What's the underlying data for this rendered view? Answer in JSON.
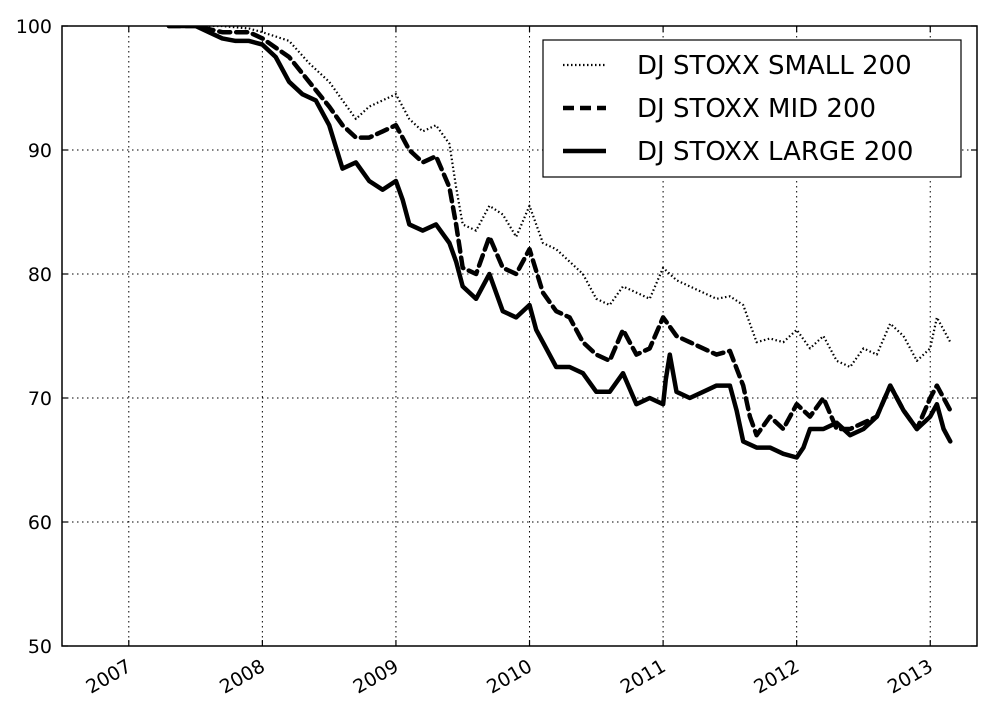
{
  "chart_data": {
    "type": "line",
    "title": "",
    "xlabel": "",
    "ylabel": "",
    "xlim": [
      2006.5,
      2013.35
    ],
    "ylim": [
      50,
      100
    ],
    "x_ticks": [
      2007,
      2008,
      2009,
      2010,
      2011,
      2012,
      2013
    ],
    "x_tick_labels": [
      "2007",
      "2008",
      "2009",
      "2010",
      "2011",
      "2012",
      "2013"
    ],
    "y_ticks": [
      50,
      60,
      70,
      80,
      90,
      100
    ],
    "y_tick_labels": [
      "50",
      "60",
      "70",
      "80",
      "90",
      "100"
    ],
    "grid": true,
    "legend_position": "top-right",
    "series": [
      {
        "name": "DJ STOXX SMALL 200",
        "style": "dotted",
        "color": "#000000",
        "x": [
          2007.3,
          2007.5,
          2007.7,
          2007.9,
          2008.0,
          2008.2,
          2008.35,
          2008.5,
          2008.6,
          2008.7,
          2008.8,
          2008.9,
          2009.0,
          2009.1,
          2009.2,
          2009.3,
          2009.4,
          2009.45,
          2009.5,
          2009.6,
          2009.7,
          2009.8,
          2009.9,
          2010.0,
          2010.1,
          2010.2,
          2010.3,
          2010.4,
          2010.5,
          2010.6,
          2010.7,
          2010.8,
          2010.9,
          2011.0,
          2011.1,
          2011.2,
          2011.3,
          2011.4,
          2011.5,
          2011.6,
          2011.65,
          2011.7,
          2011.8,
          2011.9,
          2012.0,
          2012.1,
          2012.2,
          2012.3,
          2012.4,
          2012.5,
          2012.6,
          2012.7,
          2012.8,
          2012.9,
          2013.0,
          2013.05,
          2013.1,
          2013.15
        ],
        "values": [
          100,
          100,
          100,
          99.8,
          99.5,
          98.8,
          97,
          95.5,
          94,
          92.5,
          93.5,
          94,
          94.5,
          92.5,
          91.5,
          92,
          90.5,
          87,
          84,
          83.5,
          85.5,
          84.8,
          83,
          85.5,
          82.5,
          82,
          81,
          80,
          78,
          77.5,
          79,
          78.5,
          78,
          80.5,
          79.5,
          79,
          78.5,
          78,
          78.2,
          77.5,
          76,
          74.5,
          74.8,
          74.5,
          75.5,
          74,
          75,
          73,
          72.5,
          74,
          73.5,
          76,
          75,
          73,
          74,
          76.5,
          75.5,
          74.5
        ]
      },
      {
        "name": "DJ STOXX MID 200",
        "style": "dashed",
        "color": "#000000",
        "x": [
          2007.3,
          2007.5,
          2007.7,
          2007.9,
          2008.0,
          2008.2,
          2008.35,
          2008.5,
          2008.6,
          2008.7,
          2008.8,
          2008.9,
          2009.0,
          2009.1,
          2009.2,
          2009.3,
          2009.4,
          2009.45,
          2009.5,
          2009.6,
          2009.7,
          2009.8,
          2009.9,
          2010.0,
          2010.1,
          2010.2,
          2010.3,
          2010.4,
          2010.5,
          2010.6,
          2010.7,
          2010.8,
          2010.9,
          2011.0,
          2011.1,
          2011.2,
          2011.3,
          2011.4,
          2011.5,
          2011.6,
          2011.65,
          2011.7,
          2011.8,
          2011.9,
          2012.0,
          2012.1,
          2012.2,
          2012.3,
          2012.4,
          2012.5,
          2012.6,
          2012.7,
          2012.8,
          2012.9,
          2013.0,
          2013.05,
          2013.1,
          2013.15
        ],
        "values": [
          100,
          100,
          99.5,
          99.5,
          99,
          97.5,
          95.5,
          93.5,
          92,
          91,
          91,
          91.5,
          92,
          90,
          89,
          89.5,
          87,
          84,
          80.5,
          80,
          83,
          80.5,
          80,
          82,
          78.5,
          77,
          76.5,
          74.5,
          73.5,
          73,
          75.5,
          73.5,
          74,
          76.5,
          75,
          74.5,
          74,
          73.5,
          73.8,
          71,
          68.5,
          67,
          68.5,
          67.5,
          69.5,
          68.5,
          70,
          67.5,
          67.5,
          68,
          68.5,
          71,
          69,
          67.5,
          70,
          71,
          70,
          69
        ]
      },
      {
        "name": "DJ STOXX LARGE 200",
        "style": "solid",
        "color": "#000000",
        "x": [
          2007.3,
          2007.5,
          2007.6,
          2007.7,
          2007.8,
          2007.9,
          2008.0,
          2008.1,
          2008.2,
          2008.3,
          2008.4,
          2008.5,
          2008.6,
          2008.7,
          2008.8,
          2008.9,
          2009.0,
          2009.05,
          2009.1,
          2009.2,
          2009.3,
          2009.4,
          2009.45,
          2009.5,
          2009.6,
          2009.7,
          2009.8,
          2009.9,
          2010.0,
          2010.05,
          2010.1,
          2010.2,
          2010.3,
          2010.4,
          2010.5,
          2010.6,
          2010.7,
          2010.8,
          2010.9,
          2011.0,
          2011.02,
          2011.05,
          2011.1,
          2011.2,
          2011.3,
          2011.4,
          2011.5,
          2011.55,
          2011.6,
          2011.7,
          2011.8,
          2011.9,
          2012.0,
          2012.05,
          2012.1,
          2012.2,
          2012.3,
          2012.4,
          2012.5,
          2012.6,
          2012.7,
          2012.8,
          2012.9,
          2013.0,
          2013.05,
          2013.1,
          2013.15
        ],
        "values": [
          100,
          100,
          99.5,
          99,
          98.8,
          98.8,
          98.5,
          97.5,
          95.5,
          94.5,
          94,
          92,
          88.5,
          89,
          87.5,
          86.8,
          87.5,
          86,
          84,
          83.5,
          84,
          82.5,
          81,
          79,
          78,
          80,
          77,
          76.5,
          77.5,
          75.5,
          74.5,
          72.5,
          72.5,
          72,
          70.5,
          70.5,
          72,
          69.5,
          70,
          69.5,
          71.5,
          73.5,
          70.5,
          70,
          70.5,
          71,
          71,
          69,
          66.5,
          66,
          66,
          65.5,
          65.2,
          66,
          67.5,
          67.5,
          68,
          67,
          67.5,
          68.5,
          71,
          69,
          67.5,
          68.5,
          69.5,
          67.5,
          66.5
        ]
      }
    ]
  }
}
